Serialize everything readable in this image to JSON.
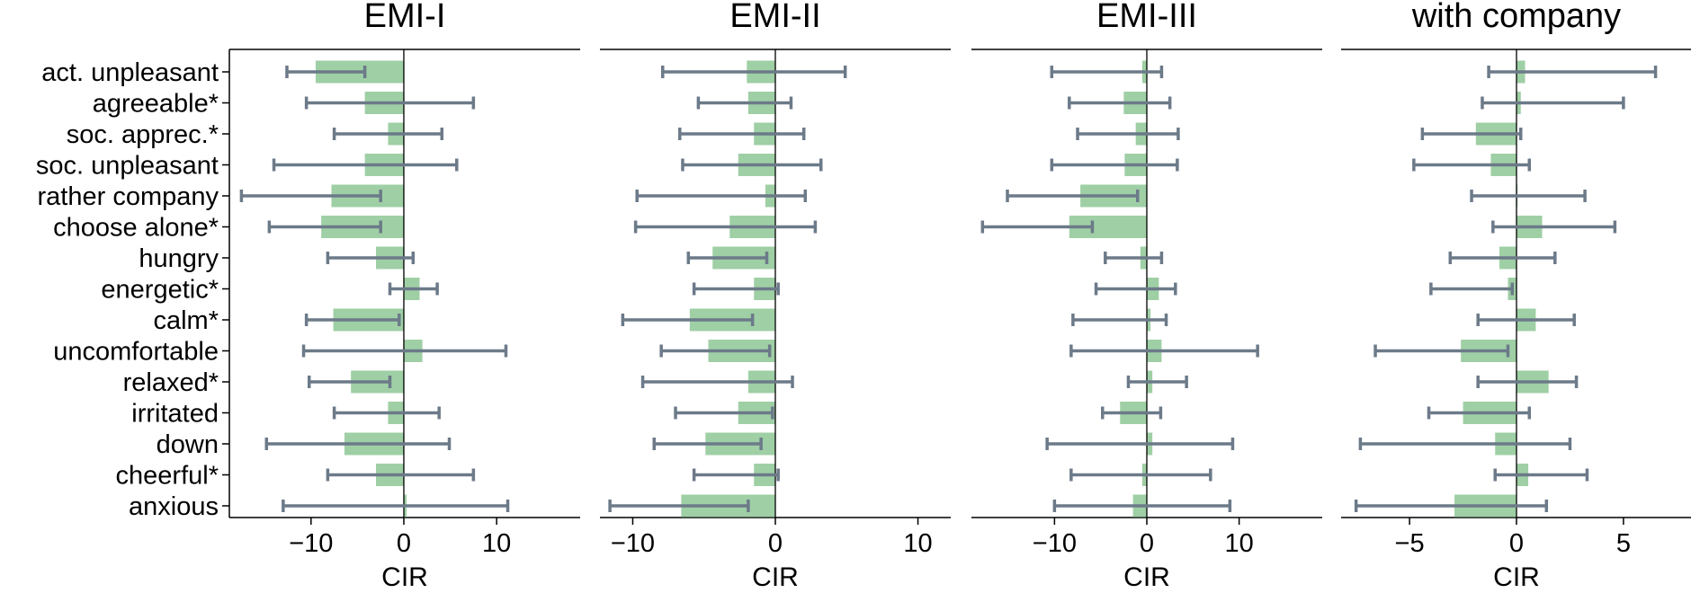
{
  "colors": {
    "bar": "#9fcfa5",
    "errorbar": "#6c7a89",
    "axis": "#000000",
    "background": "#ffffff"
  },
  "chart_data": [
    {
      "type": "bar",
      "orientation": "horizontal",
      "title": "EMI-I",
      "xlabel": "CIR",
      "categories": [
        "act. unpleasant",
        "agreeable*",
        "soc. apprec.*",
        "soc. unpleasant",
        "rather company",
        "choose alone*",
        "hungry",
        "energetic*",
        "calm*",
        "uncomfortable",
        "relaxed*",
        "irritated",
        "down",
        "cheerful*",
        "anxious"
      ],
      "values": [
        -9.5,
        -4.2,
        -1.7,
        -4.2,
        -7.8,
        -8.9,
        -3.0,
        1.7,
        -7.6,
        2.0,
        -5.7,
        -1.7,
        -6.4,
        -3.0,
        0.3
      ],
      "ci_low": [
        -12.6,
        -10.5,
        -7.5,
        -14.0,
        -17.5,
        -14.5,
        -8.2,
        -1.5,
        -10.5,
        -10.8,
        -10.2,
        -7.5,
        -14.8,
        -8.2,
        -13.0
      ],
      "ci_high": [
        -4.2,
        7.5,
        4.1,
        5.7,
        -2.5,
        -2.5,
        1.0,
        3.6,
        -0.5,
        11.0,
        -1.5,
        3.8,
        4.9,
        7.5,
        11.2
      ],
      "xlim": [
        -18.8,
        19.0
      ],
      "xticks": [
        -10,
        0,
        10
      ],
      "xtick_labels": [
        "−10",
        "0",
        "10"
      ]
    },
    {
      "type": "bar",
      "orientation": "horizontal",
      "title": "EMI-II",
      "xlabel": "CIR",
      "categories": [
        "act. unpleasant",
        "agreeable*",
        "soc. apprec.*",
        "soc. unpleasant",
        "rather company",
        "choose alone*",
        "hungry",
        "energetic*",
        "calm*",
        "uncomfortable",
        "relaxed*",
        "irritated",
        "down",
        "cheerful*",
        "anxious"
      ],
      "values": [
        -2.0,
        -1.9,
        -1.5,
        -2.6,
        -0.7,
        -3.2,
        -4.4,
        -1.5,
        -6.0,
        -4.7,
        -1.9,
        -2.6,
        -4.9,
        -1.5,
        -6.6
      ],
      "ci_low": [
        -7.9,
        -5.4,
        -6.7,
        -6.5,
        -9.7,
        -9.8,
        -6.1,
        -5.7,
        -10.7,
        -8.0,
        -9.3,
        -7.0,
        -8.5,
        -5.7,
        -11.6
      ],
      "ci_high": [
        4.9,
        1.1,
        2.0,
        3.2,
        2.1,
        2.8,
        -0.6,
        0.2,
        -1.6,
        -0.4,
        1.2,
        -0.2,
        -1.0,
        0.2,
        -1.9
      ],
      "xlim": [
        -12.3,
        12.3
      ],
      "xticks": [
        -10,
        0,
        10
      ],
      "xtick_labels": [
        "−10",
        "0",
        "10"
      ]
    },
    {
      "type": "bar",
      "orientation": "horizontal",
      "title": "EMI-III",
      "xlabel": "CIR",
      "categories": [
        "act. unpleasant",
        "agreeable*",
        "soc. apprec.*",
        "soc. unpleasant",
        "rather company",
        "choose alone*",
        "hungry",
        "energetic*",
        "calm*",
        "uncomfortable",
        "relaxed*",
        "irritated",
        "down",
        "cheerful*",
        "anxious"
      ],
      "values": [
        -0.5,
        -2.5,
        -1.2,
        -2.4,
        -7.2,
        -8.4,
        -0.7,
        1.3,
        0.4,
        1.6,
        0.6,
        -2.9,
        0.6,
        -0.5,
        -1.5
      ],
      "ci_low": [
        -10.3,
        -8.4,
        -7.5,
        -10.3,
        -15.1,
        -17.8,
        -4.5,
        -5.5,
        -8.0,
        -8.2,
        -2.0,
        -4.8,
        -10.8,
        -8.2,
        -10.0
      ],
      "ci_high": [
        1.6,
        2.5,
        3.4,
        3.3,
        -1.0,
        -5.9,
        1.6,
        3.1,
        2.1,
        12.0,
        4.3,
        1.5,
        9.3,
        6.9,
        9.0
      ],
      "xlim": [
        -19.0,
        19.0
      ],
      "xticks": [
        -10,
        0,
        10
      ],
      "xtick_labels": [
        "−10",
        "0",
        "10"
      ]
    },
    {
      "type": "bar",
      "orientation": "horizontal",
      "title": "with company",
      "xlabel": "CIR",
      "categories": [
        "act. unpleasant",
        "agreeable*",
        "soc. apprec.*",
        "soc. unpleasant",
        "rather company",
        "choose alone*",
        "hungry",
        "energetic*",
        "calm*",
        "uncomfortable",
        "relaxed*",
        "irritated",
        "down",
        "cheerful*",
        "anxious"
      ],
      "values": [
        0.4,
        0.2,
        -1.9,
        -1.2,
        0.05,
        1.2,
        -0.8,
        -0.4,
        0.9,
        -2.6,
        1.5,
        -2.5,
        -1.0,
        0.55,
        -2.9
      ],
      "ci_low": [
        -1.3,
        -1.6,
        -4.4,
        -4.8,
        -2.1,
        -1.1,
        -3.1,
        -4.0,
        -1.8,
        -6.6,
        -1.8,
        -4.1,
        -7.3,
        -1.0,
        -7.5
      ],
      "ci_high": [
        6.5,
        5.0,
        0.2,
        0.6,
        3.2,
        4.6,
        1.8,
        -0.2,
        2.7,
        -0.4,
        2.8,
        0.6,
        2.5,
        3.3,
        1.4
      ],
      "xlim": [
        -8.2,
        8.2
      ],
      "xticks": [
        -5,
        0,
        5
      ],
      "xtick_labels": [
        "−5",
        "0",
        "5"
      ]
    }
  ]
}
